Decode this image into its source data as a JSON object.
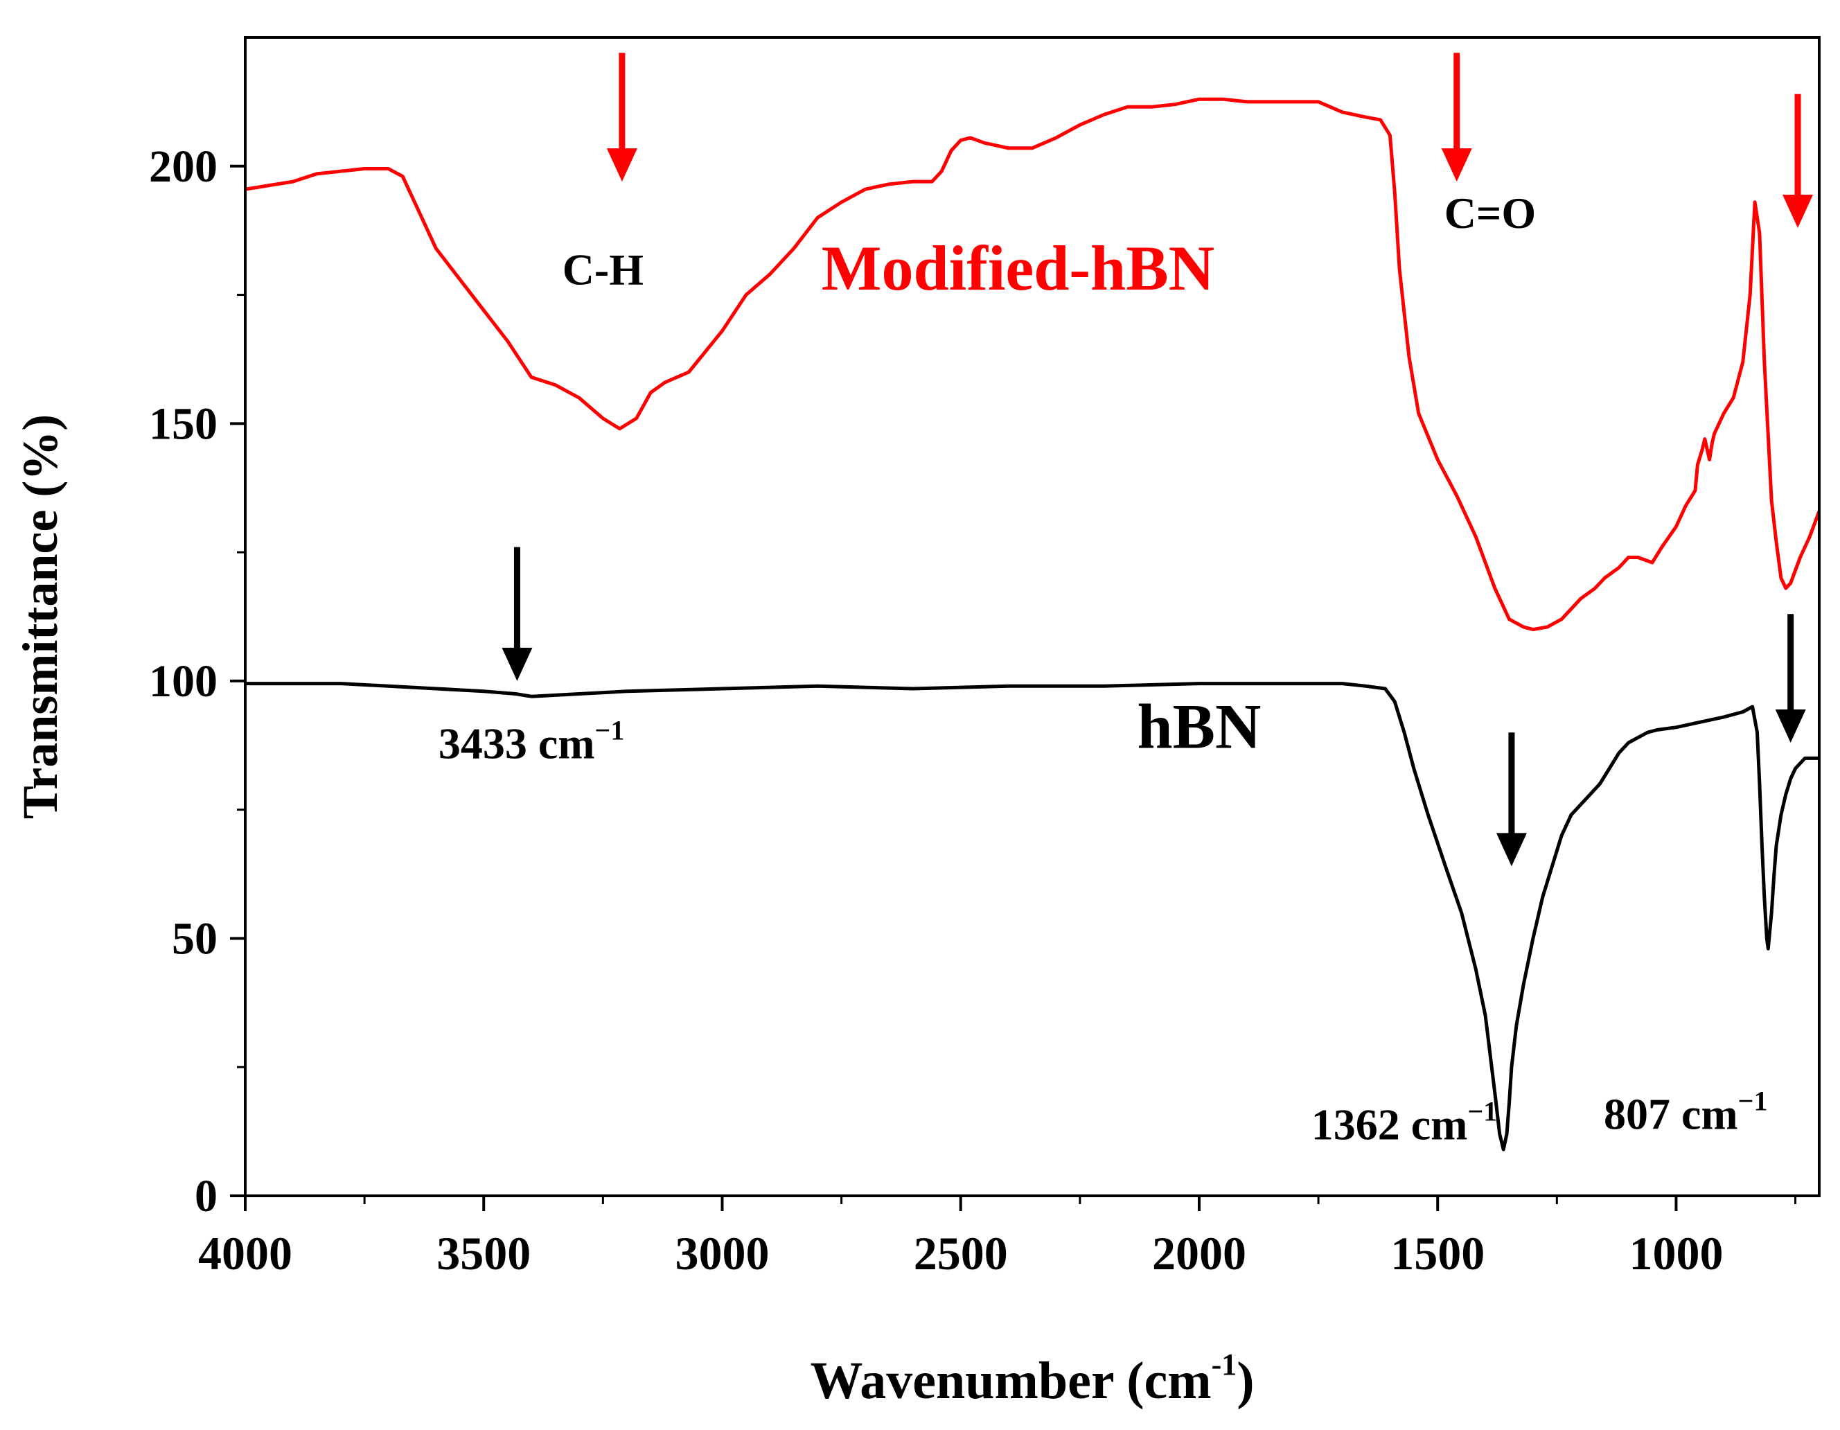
{
  "chart_data": {
    "type": "line",
    "xlabel": "Wavenumber (cm",
    "xlabel_sup": "-1",
    "xlabel_end": ")",
    "ylabel": "Transmittance (%)",
    "xlim": [
      4000,
      700
    ],
    "ylim": [
      0,
      225
    ],
    "x_ticks": [
      4000,
      3500,
      3000,
      2500,
      2000,
      1500,
      1000
    ],
    "x_tick_labels": [
      "4000",
      "3500",
      "3000",
      "2500",
      "2000",
      "1500",
      "1000"
    ],
    "y_ticks": [
      0,
      50,
      100,
      150,
      200
    ],
    "y_tick_labels": [
      "0",
      "50",
      "100",
      "150",
      "200"
    ],
    "series": [
      {
        "name": "Modified-hBN",
        "color": "#ff0000",
        "x": [
          4000,
          3900,
          3850,
          3800,
          3750,
          3700,
          3670,
          3640,
          3600,
          3550,
          3500,
          3450,
          3400,
          3350,
          3300,
          3250,
          3215,
          3180,
          3150,
          3120,
          3070,
          3000,
          2950,
          2900,
          2850,
          2800,
          2750,
          2700,
          2650,
          2600,
          2560,
          2540,
          2520,
          2500,
          2480,
          2450,
          2400,
          2350,
          2300,
          2250,
          2200,
          2150,
          2100,
          2050,
          2000,
          1950,
          1900,
          1850,
          1800,
          1750,
          1700,
          1650,
          1620,
          1600,
          1590,
          1580,
          1560,
          1540,
          1500,
          1460,
          1420,
          1380,
          1350,
          1320,
          1300,
          1270,
          1240,
          1200,
          1170,
          1150,
          1120,
          1100,
          1080,
          1050,
          1030,
          1000,
          980,
          960,
          955,
          945,
          940,
          935,
          930,
          925,
          920,
          900,
          880,
          860,
          845,
          835,
          825,
          815,
          800,
          790,
          780,
          770,
          760,
          740,
          720,
          700
        ],
        "y": [
          195.5,
          197,
          198.5,
          199,
          199.5,
          199.5,
          198,
          192,
          184,
          178,
          172,
          166,
          159,
          157.5,
          155,
          151,
          149,
          151,
          156,
          158,
          160,
          168,
          175,
          179,
          184,
          190,
          193,
          195.5,
          196.5,
          197,
          197,
          199,
          203,
          205,
          205.5,
          204.5,
          203.5,
          203.5,
          205.5,
          208,
          210,
          211.5,
          211.5,
          212,
          213,
          213,
          212.5,
          212.5,
          212.5,
          212.5,
          210.5,
          209.5,
          209,
          206,
          195,
          180,
          163,
          152,
          143,
          136,
          128,
          118,
          112,
          110.5,
          110,
          110.5,
          112,
          116,
          118,
          120,
          122,
          124,
          124,
          123,
          126,
          130,
          134,
          137,
          142,
          145,
          147,
          145,
          143,
          146,
          148,
          152,
          155,
          162,
          175,
          193,
          187,
          162,
          135,
          127,
          120,
          118,
          119,
          124,
          128,
          133
        ]
      },
      {
        "name": "hBN",
        "color": "#000000",
        "x": [
          4000,
          3900,
          3800,
          3700,
          3600,
          3500,
          3433,
          3400,
          3300,
          3200,
          3000,
          2800,
          2600,
          2400,
          2200,
          2000,
          1800,
          1700,
          1650,
          1610,
          1590,
          1570,
          1550,
          1520,
          1480,
          1450,
          1420,
          1400,
          1380,
          1370,
          1362,
          1355,
          1350,
          1345,
          1335,
          1320,
          1300,
          1280,
          1260,
          1240,
          1220,
          1200,
          1180,
          1160,
          1140,
          1120,
          1100,
          1080,
          1060,
          1040,
          1000,
          950,
          900,
          860,
          840,
          830,
          825,
          820,
          815,
          810,
          807,
          805,
          800,
          795,
          790,
          780,
          770,
          760,
          750,
          740,
          730,
          720,
          710,
          700
        ],
        "y": [
          99.5,
          99.5,
          99.5,
          99,
          98.5,
          98,
          97.5,
          97,
          97.5,
          98,
          98.5,
          99,
          98.5,
          99,
          99,
          99.5,
          99.5,
          99.5,
          99,
          98.5,
          96,
          90,
          83,
          74,
          63,
          55,
          44,
          35,
          20,
          12,
          9,
          12,
          18,
          25,
          33,
          41,
          50,
          58,
          64,
          70,
          74,
          76,
          78,
          80,
          83,
          86,
          88,
          89,
          90,
          90.5,
          91,
          92,
          93,
          94,
          95,
          90,
          80,
          68,
          58,
          50,
          48,
          50,
          55,
          62,
          68,
          74,
          78,
          81,
          83,
          84,
          85,
          85,
          85,
          85
        ]
      }
    ],
    "annotations": [
      {
        "text": "Modified-hBN",
        "color": "#ff0000",
        "x": 2380,
        "y": 176
      },
      {
        "text": "hBN",
        "color": "#000000",
        "x": 2000,
        "y": 87
      },
      {
        "text": "C-H",
        "color": "#000000",
        "x": 3250,
        "y": 177
      },
      {
        "text": "C=O",
        "color": "#000000",
        "x": 1390,
        "y": 188
      },
      {
        "text": "3433 cm",
        "sup": "−1",
        "color": "#000000",
        "x": 3400,
        "y": 85
      },
      {
        "text": "1362 cm",
        "sup": "−1",
        "color": "#000000",
        "x": 1570,
        "y": 11
      },
      {
        "text": "807 cm",
        "sup": "−1",
        "color": "#000000",
        "x": 980,
        "y": 13
      }
    ],
    "arrows": [
      {
        "color": "#ff0000",
        "x": 3210,
        "y_top": 222,
        "y_tip": 197
      },
      {
        "color": "#ff0000",
        "x": 1460,
        "y_top": 222,
        "y_tip": 197
      },
      {
        "color": "#ff0000",
        "x": 745,
        "y_top": 214,
        "y_tip": 188
      },
      {
        "color": "#000000",
        "x": 3430,
        "y_top": 126,
        "y_tip": 100
      },
      {
        "color": "#000000",
        "x": 1345,
        "y_top": 90,
        "y_tip": 64
      },
      {
        "color": "#000000",
        "x": 760,
        "y_top": 113,
        "y_tip": 88
      }
    ]
  }
}
